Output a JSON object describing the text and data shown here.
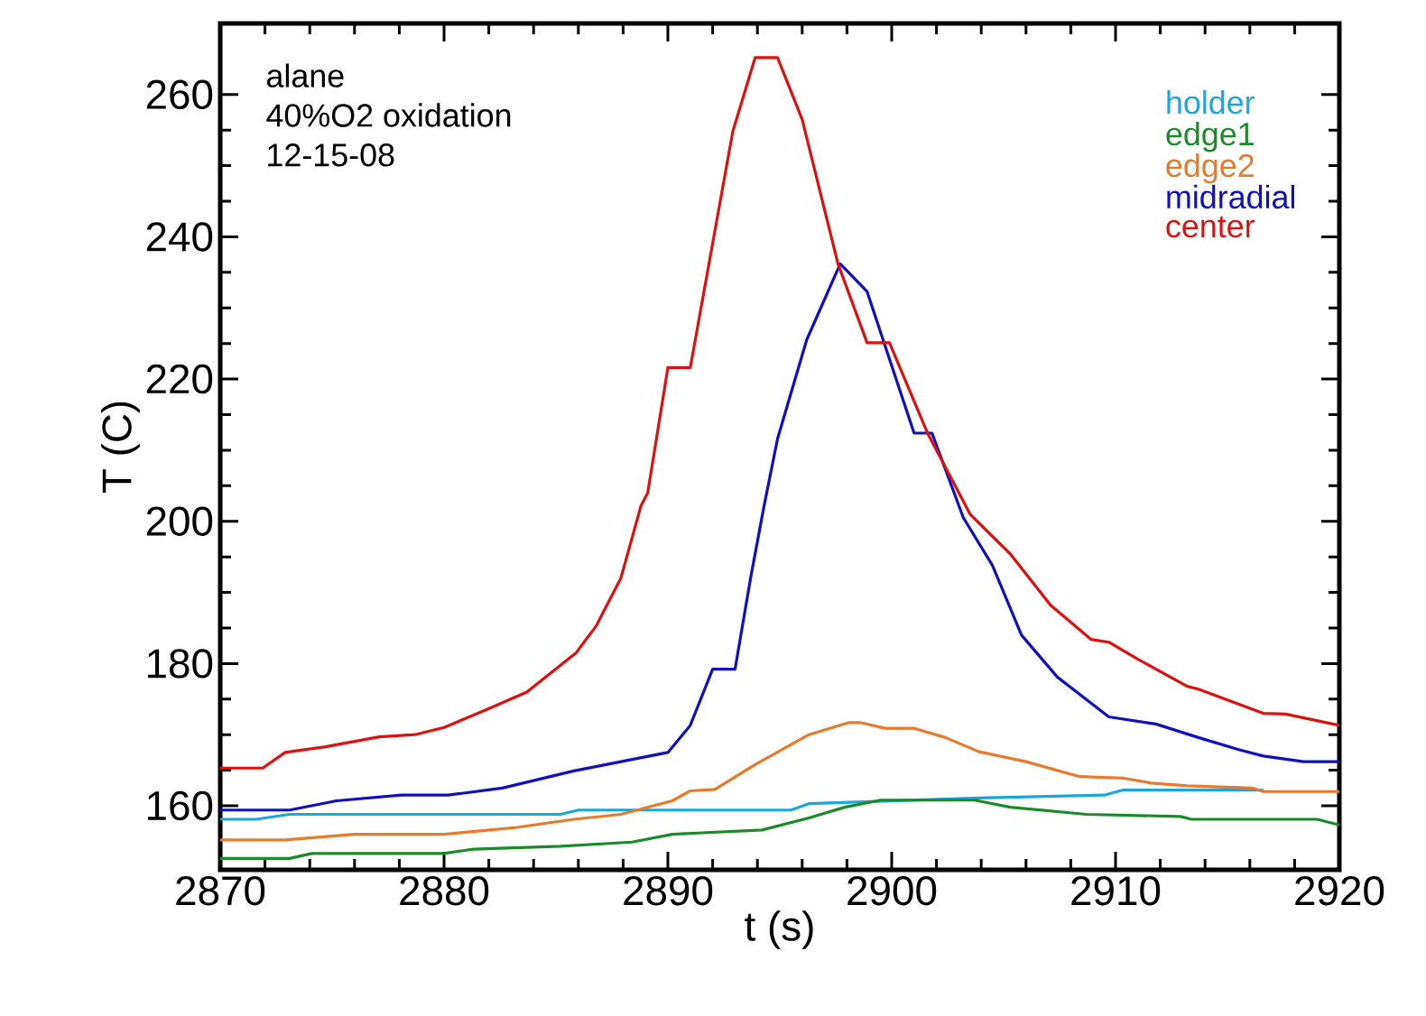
{
  "chart_data": {
    "type": "line",
    "xlabel": "t (s)",
    "ylabel": "T (C)",
    "annotations": [
      "alane",
      "40%O2 oxidation",
      "12-15-08"
    ],
    "xlim": [
      2870,
      2920
    ],
    "xticks": [
      2870,
      2880,
      2890,
      2900,
      2910,
      2920
    ],
    "ylim": [
      151,
      270
    ],
    "yticks": [
      160,
      180,
      200,
      220,
      240,
      260
    ],
    "grid": false,
    "legend": "top right",
    "marker": "none",
    "line_style": "solid",
    "series": [
      {
        "name": "holder",
        "color": "#1aa6e0",
        "x": [
          2870,
          2871.6,
          2873.1,
          2885.2,
          2886,
          2895.5,
          2896.3,
          2903.9,
          2909.5,
          2910.3,
          2916.6
        ],
        "values": [
          158.1,
          158.1,
          158.8,
          158.8,
          159.4,
          159.4,
          160.3,
          161.1,
          161.5,
          162.2,
          162.2
        ]
      },
      {
        "name": "edge1",
        "color": "#1a8a2a",
        "x": [
          2870,
          2873.1,
          2874.1,
          2880,
          2881.3,
          2885.2,
          2888.4,
          2890.2,
          2894.2,
          2896.3,
          2897.9,
          2899.5,
          2903.7,
          2905.3,
          2908.7,
          2912.9,
          2913.4,
          2919,
          2920
        ],
        "values": [
          152.6,
          152.6,
          153.3,
          153.3,
          153.9,
          154.3,
          154.9,
          156,
          156.6,
          158.3,
          159.8,
          160.8,
          160.8,
          159.8,
          158.8,
          158.5,
          158.1,
          158.1,
          157.3
        ]
      },
      {
        "name": "edge2",
        "color": "#e87a2a",
        "x": [
          2870,
          2872.9,
          2876,
          2880,
          2883.1,
          2885.8,
          2887.9,
          2890.2,
          2891,
          2892.1,
          2893.9,
          2896.3,
          2898.1,
          2898.6,
          2899.7,
          2901,
          2902.4,
          2903.9,
          2906,
          2908.4,
          2910.3,
          2911.6,
          2913.2,
          2916.1,
          2916.6,
          2920
        ],
        "values": [
          155.2,
          155.2,
          156,
          156,
          156.9,
          158.1,
          158.8,
          160.7,
          162.1,
          162.3,
          165.8,
          170,
          171.7,
          171.7,
          170.9,
          170.9,
          169.6,
          167.6,
          166.2,
          164.1,
          163.9,
          163.2,
          162.8,
          162.5,
          162,
          162
        ]
      },
      {
        "name": "midradial",
        "color": "#1010c0",
        "x": [
          2870,
          2873.1,
          2875.2,
          2878.1,
          2880.2,
          2882.6,
          2885.8,
          2887.9,
          2890,
          2891,
          2892,
          2893,
          2893.7,
          2894.3,
          2894.9,
          2896.2,
          2897.7,
          2898.9,
          2901,
          2901.8,
          2903.2,
          2904.5,
          2905.8,
          2907.4,
          2909.7,
          2911.8,
          2913.7,
          2915.5,
          2916.6,
          2918.4,
          2920
        ],
        "values": [
          159.4,
          159.4,
          160.7,
          161.5,
          161.5,
          162.5,
          164.9,
          166.2,
          167.5,
          171.3,
          179.2,
          179.2,
          192.1,
          202.2,
          211.6,
          225.5,
          236.2,
          232.3,
          212.4,
          212.4,
          200.5,
          193.8,
          184,
          178.1,
          172.5,
          171.5,
          169.6,
          167.9,
          167,
          166.2,
          166.2
        ]
      },
      {
        "name": "center",
        "color": "#dd1111",
        "x": [
          2870,
          2871.9,
          2872.9,
          2874.7,
          2877.1,
          2878.7,
          2880,
          2881.8,
          2883.7,
          2885.9,
          2886.8,
          2887.9,
          2888.8,
          2889.1,
          2890,
          2891,
          2892.9,
          2893.9,
          2894.9,
          2896,
          2897.6,
          2898.9,
          2899.9,
          2901.6,
          2903.5,
          2905.3,
          2907.1,
          2908.9,
          2909.7,
          2911,
          2913.2,
          2913.7,
          2916.6,
          2917.6,
          2920
        ],
        "values": [
          165.3,
          165.3,
          167.5,
          168.3,
          169.7,
          170,
          171,
          173.4,
          176,
          181.5,
          185.3,
          192,
          202.2,
          204,
          221.6,
          221.6,
          254.8,
          265.2,
          265.2,
          256.5,
          236.2,
          225.1,
          225.1,
          212.4,
          201,
          195.4,
          188.2,
          183.4,
          183,
          180.6,
          176.8,
          176.4,
          173,
          172.9,
          171.3
        ]
      }
    ]
  }
}
